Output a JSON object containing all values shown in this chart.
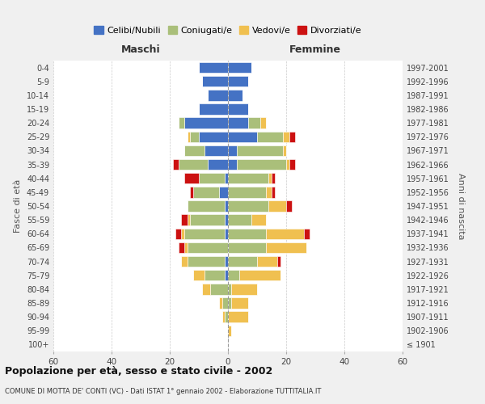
{
  "age_groups": [
    "100+",
    "95-99",
    "90-94",
    "85-89",
    "80-84",
    "75-79",
    "70-74",
    "65-69",
    "60-64",
    "55-59",
    "50-54",
    "45-49",
    "40-44",
    "35-39",
    "30-34",
    "25-29",
    "20-24",
    "15-19",
    "10-14",
    "5-9",
    "0-4"
  ],
  "birth_years": [
    "≤ 1901",
    "1902-1906",
    "1907-1911",
    "1912-1916",
    "1917-1921",
    "1922-1926",
    "1927-1931",
    "1932-1936",
    "1937-1941",
    "1942-1946",
    "1947-1951",
    "1952-1956",
    "1957-1961",
    "1962-1966",
    "1967-1971",
    "1972-1976",
    "1977-1981",
    "1982-1986",
    "1987-1991",
    "1992-1996",
    "1997-2001"
  ],
  "maschi": {
    "celibi": [
      0,
      0,
      0,
      0,
      0,
      1,
      1,
      0,
      1,
      1,
      1,
      3,
      1,
      7,
      8,
      10,
      15,
      10,
      7,
      9,
      10
    ],
    "coniugati": [
      0,
      0,
      1,
      2,
      6,
      7,
      13,
      14,
      14,
      12,
      13,
      9,
      9,
      10,
      7,
      3,
      2,
      0,
      0,
      0,
      0
    ],
    "vedovi": [
      0,
      0,
      1,
      1,
      3,
      4,
      2,
      1,
      1,
      1,
      0,
      0,
      0,
      0,
      0,
      1,
      0,
      0,
      0,
      0,
      0
    ],
    "divorziati": [
      0,
      0,
      0,
      0,
      0,
      0,
      0,
      2,
      2,
      2,
      0,
      1,
      5,
      2,
      0,
      0,
      0,
      0,
      0,
      0,
      0
    ]
  },
  "femmine": {
    "nubili": [
      0,
      0,
      0,
      0,
      0,
      0,
      0,
      0,
      0,
      0,
      0,
      0,
      0,
      3,
      3,
      10,
      7,
      7,
      5,
      7,
      8
    ],
    "coniugate": [
      0,
      0,
      0,
      1,
      1,
      4,
      10,
      13,
      13,
      8,
      14,
      13,
      14,
      17,
      16,
      9,
      4,
      0,
      0,
      0,
      0
    ],
    "vedove": [
      0,
      1,
      7,
      6,
      9,
      14,
      7,
      14,
      13,
      5,
      6,
      2,
      1,
      1,
      1,
      2,
      2,
      0,
      0,
      0,
      0
    ],
    "divorziate": [
      0,
      0,
      0,
      0,
      0,
      0,
      1,
      0,
      2,
      0,
      2,
      1,
      1,
      2,
      0,
      2,
      0,
      0,
      0,
      0,
      0
    ]
  },
  "colors": {
    "celibi_nubili": "#4472C4",
    "coniugati": "#AABF7A",
    "vedovi": "#F0C050",
    "divorziati": "#CC1111"
  },
  "xlim": 60,
  "title_main": "Popolazione per età, sesso e stato civile - 2002",
  "title_sub": "COMUNE DI MOTTA DE' CONTI (VC) - Dati ISTAT 1° gennaio 2002 - Elaborazione TUTTITALIA.IT",
  "ylabel_left": "Fasce di età",
  "ylabel_right": "Anni di nascita",
  "legend_labels": [
    "Celibi/Nubili",
    "Coniugati/e",
    "Vedovi/e",
    "Divorziati/e"
  ],
  "bg_color": "#f0f0f0",
  "plot_bg": "#ffffff"
}
